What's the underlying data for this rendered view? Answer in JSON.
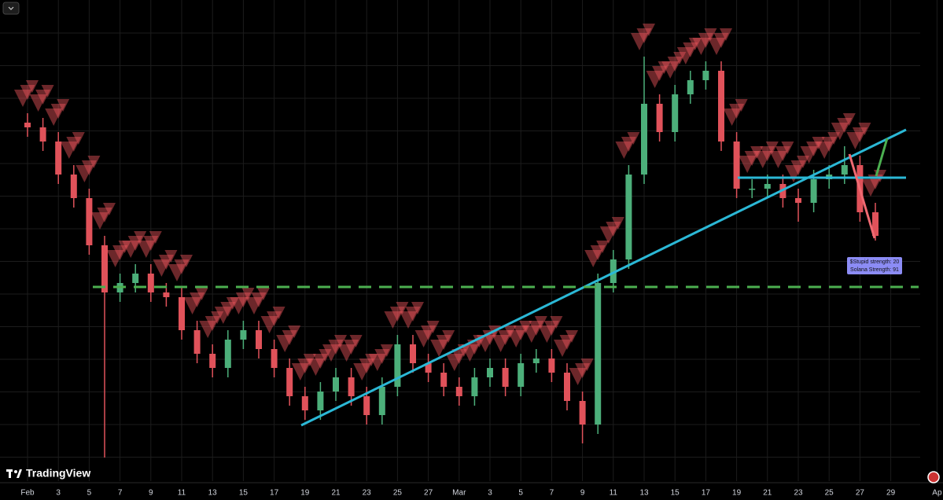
{
  "chart_data": {
    "type": "candlestick",
    "categories": [
      "Feb",
      null,
      "3",
      null,
      "5",
      null,
      "7",
      null,
      "9",
      null,
      "11",
      null,
      "13",
      null,
      "15",
      null,
      "17",
      null,
      "19",
      null,
      "21",
      null,
      "23",
      null,
      "25",
      null,
      "27",
      null,
      "Mar",
      null,
      "3",
      null,
      "5",
      null,
      "7",
      null,
      "9",
      null,
      "11",
      null,
      "13",
      null,
      "15",
      null,
      "17",
      null,
      "19",
      null,
      "21",
      null,
      "23",
      null,
      "25",
      null,
      "27",
      null,
      "29",
      null,
      null,
      "Ap"
    ],
    "open": [
      74,
      73,
      70,
      63,
      58,
      48,
      38,
      40,
      42,
      38,
      37,
      30,
      25,
      22,
      28,
      30,
      26,
      22,
      16,
      13,
      17,
      20,
      16,
      12,
      18,
      27,
      23,
      21,
      18,
      16,
      20,
      22,
      18,
      23,
      24,
      21,
      15,
      10,
      40,
      45,
      63,
      78,
      72,
      80,
      83,
      85,
      70,
      60,
      60,
      61,
      58,
      57,
      62,
      63,
      65,
      55,
      null,
      null,
      null,
      null
    ],
    "high": [
      76,
      75,
      72,
      65,
      60,
      50,
      42,
      44,
      44,
      40,
      39,
      32,
      27,
      30,
      32,
      32,
      28,
      24,
      18,
      19,
      22,
      22,
      18,
      20,
      29,
      29,
      25,
      23,
      20,
      22,
      24,
      24,
      25,
      26,
      26,
      23,
      17,
      42,
      47,
      65,
      88,
      80,
      82,
      85,
      87,
      87,
      72,
      62,
      63,
      63,
      60,
      64,
      65,
      69,
      67,
      57,
      null,
      null,
      null,
      null
    ],
    "low": [
      71,
      68,
      61,
      56,
      46,
      3,
      36,
      38,
      36,
      35,
      28,
      23,
      20,
      20,
      26,
      24,
      20,
      14,
      11,
      11,
      15,
      14,
      10,
      10,
      16,
      21,
      19,
      16,
      14,
      14,
      18,
      16,
      16,
      21,
      19,
      13,
      6,
      8,
      38,
      43,
      61,
      70,
      70,
      78,
      81,
      68,
      58,
      58,
      58,
      56,
      53,
      55,
      60,
      61,
      53,
      49,
      null,
      null,
      null,
      null
    ],
    "close": [
      73,
      70,
      63,
      58,
      48,
      38,
      40,
      42,
      38,
      37,
      30,
      25,
      22,
      28,
      30,
      26,
      22,
      16,
      13,
      17,
      20,
      16,
      12,
      18,
      27,
      23,
      21,
      18,
      16,
      20,
      22,
      18,
      23,
      24,
      21,
      15,
      10,
      40,
      45,
      63,
      78,
      72,
      80,
      83,
      85,
      70,
      60,
      60,
      61,
      58,
      57,
      62,
      63,
      65,
      55,
      50,
      null,
      null,
      null,
      null
    ],
    "up_color": "#4caf7a",
    "down_color": "#e0525a",
    "signal_color": "#f0575d",
    "ylim": [
      0,
      100
    ],
    "grid": true,
    "annotation": [
      "$Stupid strength: 20",
      "Solana Strength: 91"
    ]
  },
  "brand": "TradingView"
}
